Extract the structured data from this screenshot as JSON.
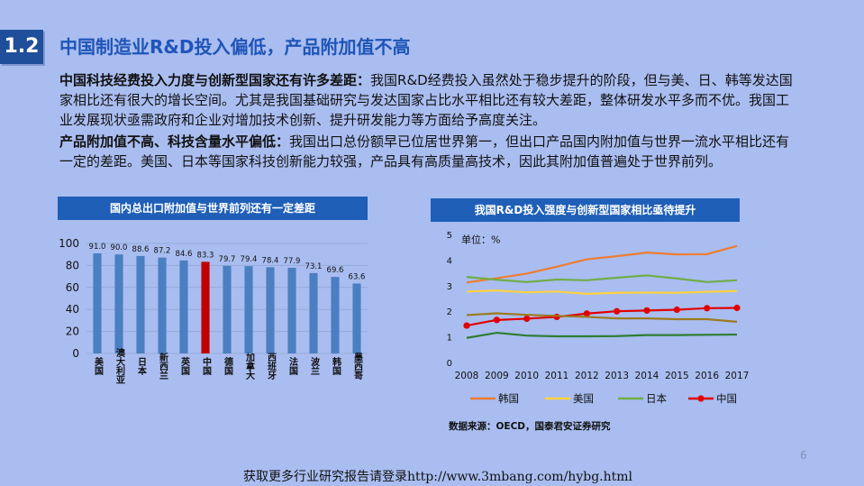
{
  "slide": {
    "number": "1.2",
    "title": "中国制造业R&D投入偏低，产品附加值不高",
    "page": "6",
    "footer": "获取更多行业研究报告请登录http://www.3mbang.com/hybg.html"
  },
  "paragraphs": [
    {
      "lead": "中国科技经费投入力度与创新型国家还有许多差距：",
      "text": "我国R&D经费投入虽然处于稳步提升的阶段，但与美、日、韩等发达国家相比还有很大的增长空间。尤其是我国基础研究与发达国家占比水平相比还有较大差距，整体研发水平多而不优。我国工业发展现状亟需政府和企业对增加技术创新、提升研发能力等方面给予高度关注。"
    },
    {
      "lead": "产品附加值不高、科技含量水平偏低：",
      "text": "我国出口总份额早已位居世界第一，但出口产品国内附加值与世界一流水平相比还有一定的差距。美国、日本等国家科技创新能力较强，产品具有高质量高技术，因此其附加值普遍处于世界前列。"
    }
  ],
  "chart_data": [
    {
      "type": "bar",
      "title": "国内总出口附加值与世界前列还有一定差距",
      "categories": [
        "美国",
        "澳大利亚",
        "日本",
        "新西兰",
        "英国",
        "中国",
        "德国",
        "加拿大",
        "西班牙",
        "法国",
        "波兰",
        "韩国",
        "墨西哥"
      ],
      "values": [
        91.0,
        90.0,
        88.6,
        87.2,
        84.6,
        83.3,
        79.7,
        79.4,
        78.4,
        77.9,
        73.1,
        69.6,
        63.6
      ],
      "value_labels": [
        "91.0",
        "90.0",
        "88.6",
        "87.2",
        "84.6",
        "83.3",
        "79.7",
        "79.4",
        "78.4",
        "77.9",
        "73.1",
        "69.6",
        "63.6"
      ],
      "highlight": "中国",
      "ylim": [
        0,
        100
      ],
      "yticks": [
        "0",
        "20",
        "40",
        "60",
        "80",
        "100"
      ],
      "colors": {
        "bar": "#4a7fc1",
        "highlight": "#c00000"
      }
    },
    {
      "type": "line",
      "title": "我国R&D投入强度与创新型国家相比亟待提升",
      "unit_label": "单位：%",
      "x": [
        "2008",
        "2009",
        "2010",
        "2011",
        "2012",
        "2013",
        "2014",
        "2015",
        "2016",
        "2017"
      ],
      "ylim": [
        0,
        5
      ],
      "yticks": [
        "0",
        "1",
        "2",
        "3",
        "4",
        "5"
      ],
      "series": [
        {
          "name": "韩国",
          "color": "#ed7d31",
          "values": [
            3.12,
            3.29,
            3.47,
            3.74,
            4.03,
            4.15,
            4.29,
            4.22,
            4.23,
            4.55
          ]
        },
        {
          "name": "美国",
          "color": "#ffd23f",
          "values": [
            2.77,
            2.81,
            2.74,
            2.77,
            2.68,
            2.72,
            2.73,
            2.72,
            2.76,
            2.79
          ]
        },
        {
          "name": "日本",
          "color": "#70ad47",
          "values": [
            3.34,
            3.23,
            3.14,
            3.24,
            3.21,
            3.31,
            3.4,
            3.28,
            3.14,
            3.21
          ]
        },
        {
          "name": "中国",
          "color": "#e00000",
          "values": [
            1.44,
            1.66,
            1.71,
            1.78,
            1.91,
            2.0,
            2.03,
            2.06,
            2.12,
            2.13
          ],
          "markers": true
        },
        {
          "name": "",
          "color": "#9c7a1e",
          "values": [
            1.85,
            1.92,
            1.86,
            1.82,
            1.78,
            1.72,
            1.72,
            1.69,
            1.69,
            1.59
          ]
        },
        {
          "name": "",
          "color": "#2e7d32",
          "values": [
            0.96,
            1.16,
            1.05,
            1.02,
            1.02,
            1.03,
            1.07,
            1.07,
            1.08,
            1.09
          ]
        }
      ],
      "source": "数据来源：OECD，国泰君安证券研究"
    }
  ]
}
